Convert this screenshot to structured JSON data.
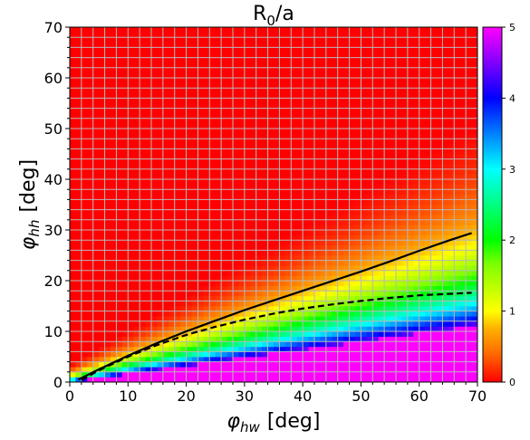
{
  "chart_data": {
    "type": "heatmap",
    "title": "R",
    "title_subscript": "0",
    "title_suffix": "/a",
    "xlabel": {
      "symbol": "φ",
      "subscript": "hw",
      "unit": "[deg]"
    },
    "ylabel": {
      "symbol": "φ",
      "subscript": "hh",
      "unit": "[deg]"
    },
    "xlim": [
      0,
      70
    ],
    "ylim": [
      0,
      70
    ],
    "xticks": [
      "0",
      "10",
      "20",
      "30",
      "40",
      "50",
      "60",
      "70"
    ],
    "yticks": [
      "0",
      "10",
      "20",
      "30",
      "40",
      "50",
      "60",
      "70"
    ],
    "colorbar": {
      "range": [
        0,
        5
      ],
      "ticks": [
        "0",
        "1",
        "2",
        "3",
        "4",
        "5"
      ],
      "colormap": "gist_rainbow_r"
    },
    "grid": true,
    "grid_step": 2,
    "series": [
      {
        "style": "solid",
        "color": "#000000",
        "x": [
          1.5,
          5,
          10,
          15,
          20,
          25,
          30,
          35,
          40,
          45,
          50,
          55,
          60,
          65,
          69
        ],
        "y": [
          0.5,
          2.5,
          5.2,
          7.7,
          10.0,
          12.1,
          14.2,
          16.1,
          18.0,
          19.9,
          21.8,
          23.8,
          25.9,
          27.9,
          29.4
        ]
      },
      {
        "style": "dashed",
        "color": "#000000",
        "x": [
          2,
          5,
          10,
          15,
          20,
          25,
          30,
          35,
          40,
          45,
          50,
          55,
          60,
          65,
          69
        ],
        "y": [
          0.4,
          2.3,
          5.0,
          7.3,
          9.3,
          10.9,
          12.3,
          13.5,
          14.5,
          15.3,
          16.0,
          16.6,
          17.1,
          17.4,
          17.6
        ]
      }
    ]
  }
}
